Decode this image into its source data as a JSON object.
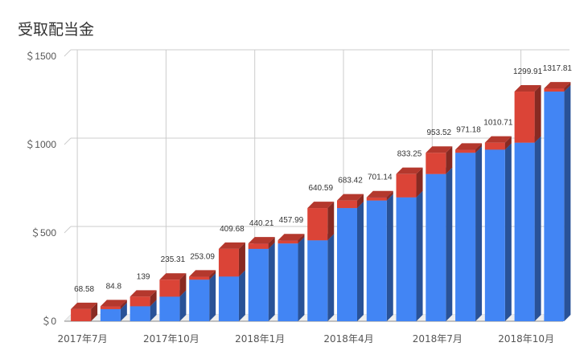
{
  "chart_data": {
    "type": "bar",
    "stacked": true,
    "style": "3d",
    "title": "受取配当金",
    "xlabel": "",
    "ylabel": "",
    "ylim": [
      0,
      1500
    ],
    "yticks": [
      0,
      500,
      1000,
      1500
    ],
    "ytick_labels": [
      "＄0",
      "＄500",
      "＄1000",
      "＄1500"
    ],
    "grid": true,
    "legend": "none",
    "categories": [
      "2017-07",
      "2017-08",
      "2017-09",
      "2017-10",
      "2017-11",
      "2017-12",
      "2018-01",
      "2018-02",
      "2018-03",
      "2018-04",
      "2018-05",
      "2018-06",
      "2018-07",
      "2018-08",
      "2018-09",
      "2018-10",
      "2018-11"
    ],
    "x_tick_labels": [
      {
        "index": 0,
        "label": "2017年7月"
      },
      {
        "index": 3,
        "label": "2017年10月"
      },
      {
        "index": 6,
        "label": "2018年1月"
      },
      {
        "index": 9,
        "label": "2018年4月"
      },
      {
        "index": 12,
        "label": "2018年7月"
      },
      {
        "index": 15,
        "label": "2018年10月"
      }
    ],
    "totals": [
      68.58,
      84.8,
      139,
      235.31,
      253.09,
      409.68,
      440.21,
      457.99,
      640.59,
      683.42,
      701.14,
      833.25,
      953.52,
      971.18,
      1010.71,
      1299.91,
      1317.81
    ],
    "total_labels": [
      "68.58",
      "84.8",
      "139",
      "235.31",
      "253.09",
      "409.68",
      "440.21",
      "457.99",
      "640.59",
      "683.42",
      "701.14",
      "833.25",
      "953.52",
      "971.18",
      "1010.71",
      "1299.91",
      "1317.81"
    ],
    "series": [
      {
        "color": "#4285f4",
        "values": [
          0,
          68.58,
          84.8,
          139,
          235.31,
          253.09,
          409.68,
          440.21,
          457.99,
          640.59,
          683.42,
          701.14,
          833.25,
          953.52,
          971.18,
          1010.71,
          1299.91
        ]
      },
      {
        "color": "#db4437",
        "values": [
          68.58,
          16.22,
          54.2,
          96.31,
          17.78,
          156.59,
          30.53,
          17.78,
          182.6,
          42.83,
          17.72,
          132.11,
          120.27,
          17.66,
          39.53,
          289.2,
          17.9
        ]
      }
    ]
  }
}
